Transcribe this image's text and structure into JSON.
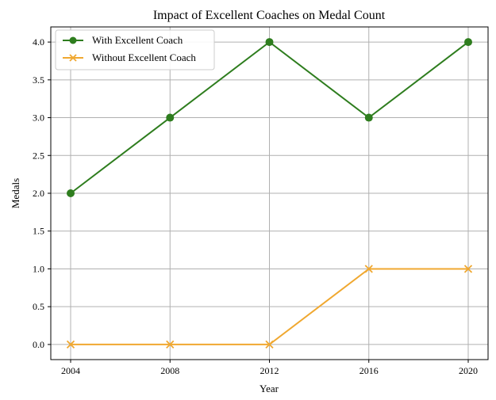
{
  "chart_data": {
    "type": "line",
    "title": "Impact of Excellent Coaches on Medal Count",
    "xlabel": "Year",
    "ylabel": "Medals",
    "x": [
      "2004",
      "2008",
      "2012",
      "2016",
      "2020"
    ],
    "ylim": [
      -0.2,
      4.2
    ],
    "yticks": [
      "0.0",
      "0.5",
      "1.0",
      "1.5",
      "2.0",
      "2.5",
      "3.0",
      "3.5",
      "4.0"
    ],
    "grid": true,
    "legend_position": "top-left",
    "series": [
      {
        "name": "With Excellent Coach",
        "values": [
          2,
          3,
          4,
          3,
          4
        ],
        "color": "#2e7d1e",
        "marker": "circle"
      },
      {
        "name": "Without Excellent Coach",
        "values": [
          0,
          0,
          0,
          1,
          1
        ],
        "color": "#f0a830",
        "marker": "x"
      }
    ]
  }
}
